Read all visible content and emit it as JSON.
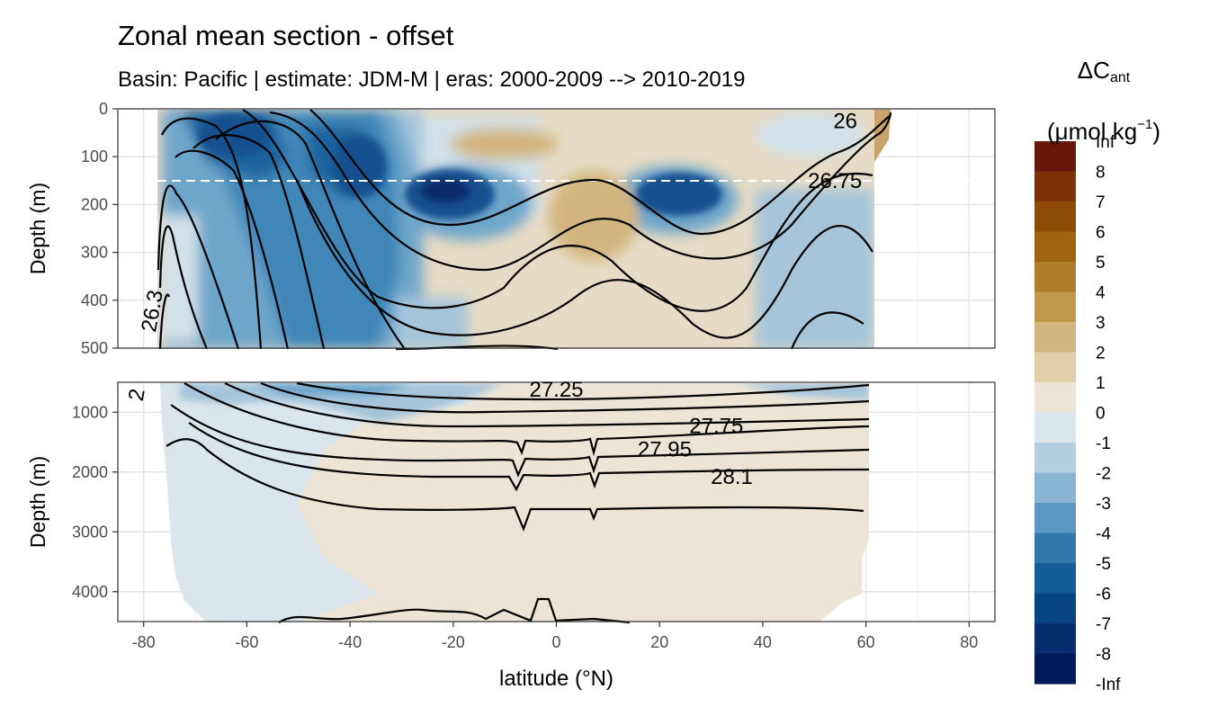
{
  "title": "Zonal mean section - offset",
  "subtitle": "Basin: Pacific | estimate: JDM-M | eras: 2000-2009 --> 2010-2019",
  "legend": {
    "title_main": "ΔC",
    "title_sub": "ant",
    "title_unit_pre": "(μmol kg",
    "title_unit_sup": "−1",
    "title_unit_post": ")"
  },
  "chart_data": {
    "type": "heatmap",
    "title": "Zonal mean section - offset",
    "subtitle": "Basin: Pacific | estimate: JDM-M | eras: 2000-2009 --> 2010-2019",
    "xlabel": "latitude (°N)",
    "ylabel": "Depth (m)",
    "xlim": [
      -85,
      85
    ],
    "x_ticks": [
      -80,
      -60,
      -40,
      -20,
      0,
      20,
      40,
      60,
      80
    ],
    "panels": [
      {
        "name": "upper",
        "ylim": [
          0,
          500
        ],
        "y_ticks": [
          0,
          100,
          200,
          300,
          400,
          500
        ]
      },
      {
        "name": "lower",
        "ylim": [
          500,
          4500
        ],
        "y_ticks": [
          1000,
          2000,
          3000,
          4000
        ]
      }
    ],
    "dashed_line_depth": 150,
    "legend_breaks": [
      "Inf",
      "8",
      "7",
      "6",
      "5",
      "4",
      "3",
      "2",
      "1",
      "0",
      "-1",
      "-2",
      "-3",
      "-4",
      "-5",
      "-6",
      "-7",
      "-8",
      "-Inf"
    ],
    "legend_colors": [
      "#67180a",
      "#7c3106",
      "#8e4b05",
      "#9e6410",
      "#b07e2a",
      "#c19849",
      "#d3b67f",
      "#e2cfa9",
      "#ece5d7",
      "#dbe6ec",
      "#b4cfe1",
      "#89b5d2",
      "#5c98c3",
      "#3179ad",
      "#135d98",
      "#084484",
      "#082d6e",
      "#031a5a"
    ],
    "contour_labels": [
      {
        "text": "26",
        "lat": 56,
        "depth": 25
      },
      {
        "text": "26.75",
        "lat": 54,
        "depth": 150
      },
      {
        "text": "26.3",
        "lat": -77,
        "depth": 410
      },
      {
        "text": "27.25",
        "lat": 0,
        "depth": 620
      },
      {
        "text": "27.75",
        "lat": 31,
        "depth": 1230
      },
      {
        "text": "27.95",
        "lat": 21,
        "depth": 1620
      },
      {
        "text": "28.1",
        "lat": 34,
        "depth": 2080
      },
      {
        "text": "2",
        "lat": -80,
        "depth": 610
      }
    ]
  }
}
